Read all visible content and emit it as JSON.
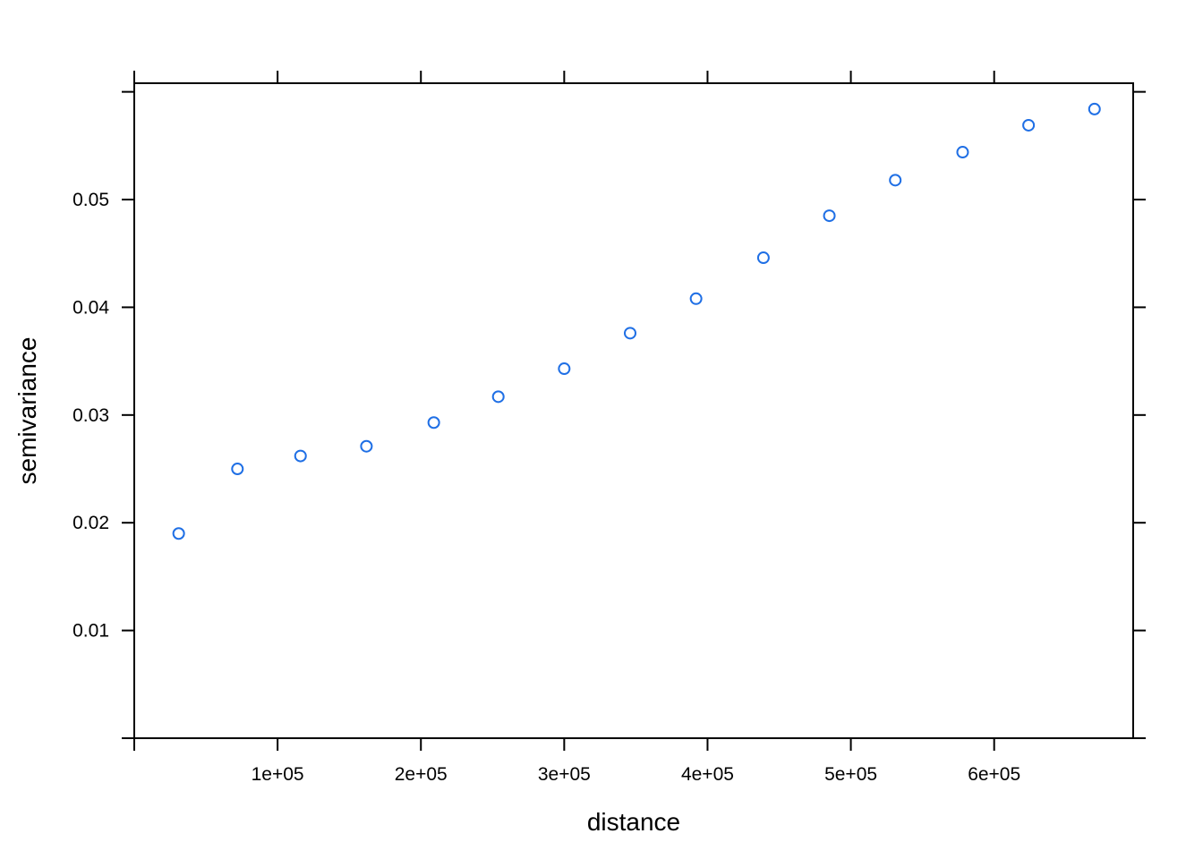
{
  "chart_data": {
    "type": "scatter",
    "title": "",
    "xlabel": "distance",
    "ylabel": "semivariance",
    "xlim": [
      0,
      697000
    ],
    "ylim": [
      0,
      0.0608
    ],
    "x_ticks": [
      0,
      100000,
      200000,
      300000,
      400000,
      500000,
      600000
    ],
    "x_tick_labels": [
      "",
      "1e+05",
      "2e+05",
      "3e+05",
      "4e+05",
      "5e+05",
      "6e+05"
    ],
    "y_ticks": [
      0,
      0.01,
      0.02,
      0.03,
      0.04,
      0.05,
      0.06
    ],
    "y_tick_labels": [
      "",
      "0.01",
      "0.02",
      "0.03",
      "0.04",
      "0.05",
      ""
    ],
    "grid": false,
    "point_color": "#1f6fe5",
    "series": [
      {
        "x": [
          31000,
          72000,
          116000,
          162000,
          209000,
          254000,
          300000,
          346000,
          392000,
          439000,
          485000,
          531000,
          578000,
          624000,
          670000
        ],
        "y": [
          0.019,
          0.025,
          0.0262,
          0.0271,
          0.0293,
          0.0317,
          0.0343,
          0.0376,
          0.0408,
          0.0446,
          0.0485,
          0.0518,
          0.0544,
          0.0569,
          0.0584
        ]
      }
    ]
  }
}
